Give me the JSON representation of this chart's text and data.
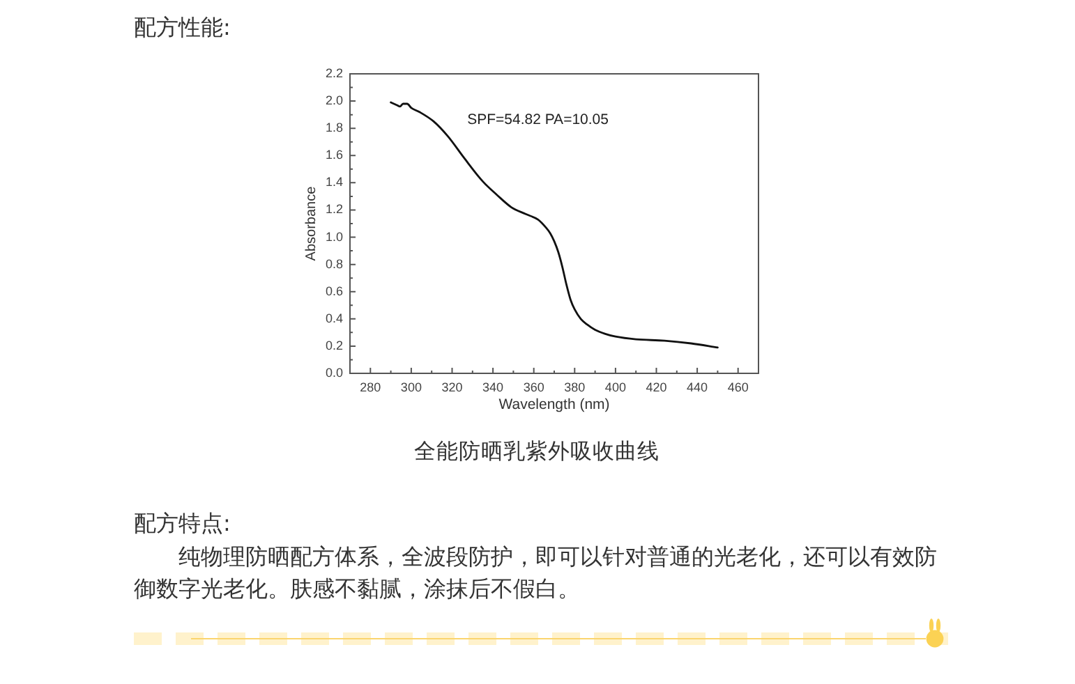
{
  "chart_data": {
    "type": "line",
    "title": "全能防晒乳紫外吸收曲线",
    "xlabel": "Wavelength (nm)",
    "ylabel": "Absorbance",
    "annotations": [
      "配方性能:",
      "SPF=54.82 PA=10.05",
      "配方特点:",
      "纯物理防晒配方体系，全波段防护，即可以针对普通的光老化，还可以有效防御数字光老化。肤感不黏腻，涂抹后不假白。"
    ],
    "x": [
      290,
      293,
      294.5,
      296,
      298,
      300,
      304,
      311,
      318,
      326,
      335,
      342,
      349,
      356,
      362,
      366,
      368,
      370,
      372,
      374,
      376,
      378,
      380,
      383,
      386,
      390,
      395,
      400,
      410,
      424,
      437,
      450
    ],
    "series": [
      {
        "color": "#111111",
        "values": [
          1.99,
          1.97,
          1.96,
          1.98,
          1.98,
          1.95,
          1.92,
          1.85,
          1.74,
          1.58,
          1.41,
          1.31,
          1.22,
          1.17,
          1.13,
          1.07,
          1.03,
          0.97,
          0.89,
          0.78,
          0.65,
          0.54,
          0.47,
          0.4,
          0.36,
          0.32,
          0.29,
          0.27,
          0.25,
          0.24,
          0.22,
          0.19
        ]
      }
    ],
    "xlim": [
      270,
      470
    ],
    "ylim": [
      0,
      2.2
    ],
    "xticks": [
      280,
      {
        "value": 290,
        "label": null
      },
      300,
      {
        "value": 310,
        "label": null
      },
      320,
      {
        "value": 330,
        "label": null
      },
      340,
      {
        "value": 350,
        "label": null
      },
      360,
      {
        "value": 370,
        "label": null
      },
      380,
      {
        "value": 390,
        "label": null
      },
      400,
      {
        "value": 410,
        "label": null
      },
      420,
      {
        "value": 430,
        "label": null
      },
      440,
      {
        "value": 450,
        "label": null
      },
      460
    ],
    "yticks": [
      {
        "value": 0,
        "label": "0.0"
      },
      {
        "value": 0.1,
        "label": null
      },
      0.2,
      {
        "value": 0.3,
        "label": null
      },
      0.4,
      {
        "value": 0.5,
        "label": null
      },
      0.6,
      {
        "value": 0.7,
        "label": null
      },
      0.8,
      {
        "value": 0.9,
        "label": null
      },
      {
        "value": 1,
        "label": "1.0"
      },
      {
        "value": 1.1,
        "label": null
      },
      1.2,
      {
        "value": 1.3,
        "label": null
      },
      1.4,
      {
        "value": 1.5,
        "label": null
      },
      1.6,
      {
        "value": 1.7,
        "label": null
      },
      1.8,
      {
        "value": 1.9,
        "label": null
      },
      {
        "value": 2,
        "label": "2.0"
      },
      {
        "value": 2.1,
        "label": null
      },
      2.2
    ],
    "marker": "none",
    "line_style": "solid"
  }
}
